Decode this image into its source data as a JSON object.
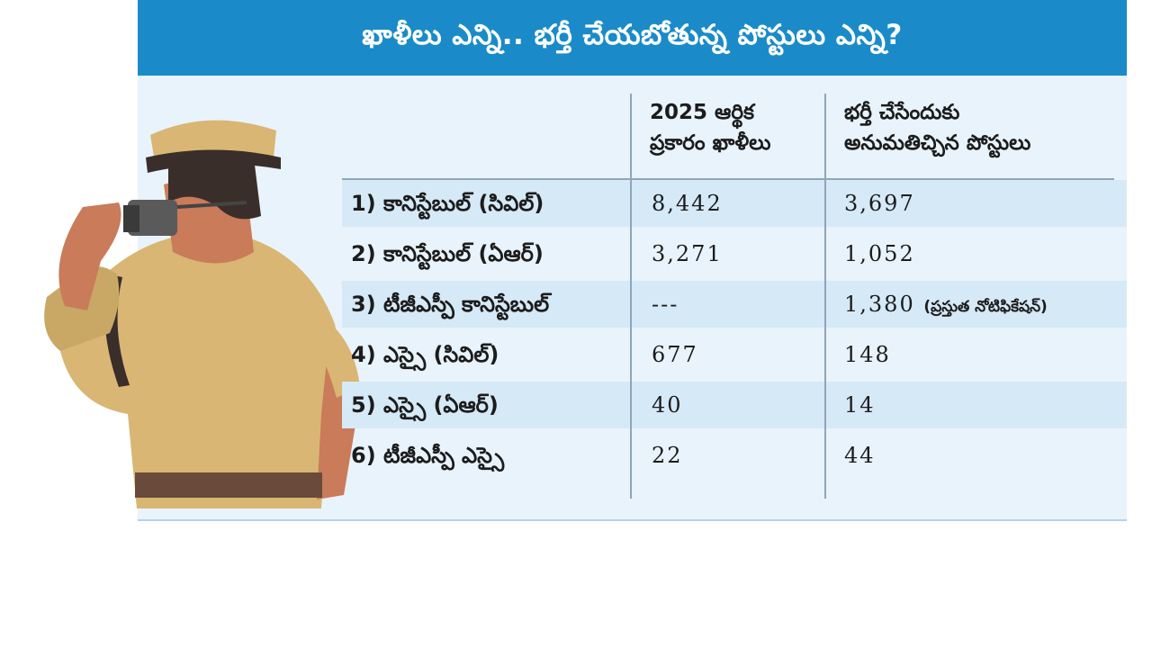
{
  "title": "ఖాళీలు ఎన్ని.. భర్తీ చేయబోతున్న పోస్టులు ఎన్ని?",
  "table": {
    "headers": {
      "vacancies": [
        "2025 ఆర్థిక",
        "ప్రకారం ఖాళీలు"
      ],
      "permitted": [
        "భర్తీ చేసేందుకు",
        "అనుమతిచ్చిన పోస్టులు"
      ]
    },
    "rows": [
      {
        "post": "1) కానిస్టేబుల్ (సివిల్)",
        "vacancies": "8,442",
        "permitted": "3,697",
        "note": ""
      },
      {
        "post": "2) కానిస్టేబుల్ (ఏఆర్)",
        "vacancies": "3,271",
        "permitted": "1,052",
        "note": ""
      },
      {
        "post": "3) టీజీఎస్పీ కానిస్టేబుల్",
        "vacancies": "---",
        "permitted": "1,380",
        "note": "(ప్రస్తుత నోటిఫికేషన్)"
      },
      {
        "post": "4) ఎస్సై (సివిల్)",
        "vacancies": "677",
        "permitted": "148",
        "note": ""
      },
      {
        "post": "5) ఎస్సై (ఏఆర్)",
        "vacancies": "40",
        "permitted": "14",
        "note": ""
      },
      {
        "post": "6) టీజీఎస్పీ ఎస్సై",
        "vacancies": "22",
        "permitted": "44",
        "note": ""
      }
    ]
  },
  "colors": {
    "banner": "#1a8bc8",
    "panel": "#e9f3fb",
    "row_shade": "#d6e9f7",
    "uniform": "#d9b673",
    "skin": "#c97b5a"
  }
}
